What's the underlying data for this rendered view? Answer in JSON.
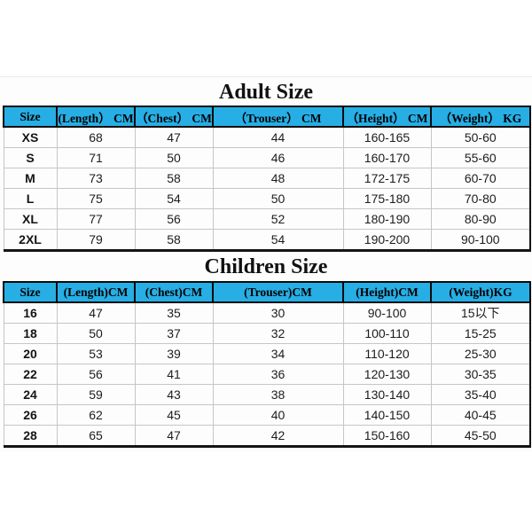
{
  "colors": {
    "header_bg": "#27aee5",
    "grid_line": "#c6c6c6",
    "border_dark": "#141414",
    "title_text": "#111111"
  },
  "adult": {
    "title": "Adult Size",
    "headers": [
      "Size",
      "(Length） CM",
      "（Chest） CM",
      "（Trouser） CM",
      "（Height） CM",
      "（Weight） KG"
    ],
    "rows": [
      [
        "XS",
        "68",
        "47",
        "44",
        "160-165",
        "50-60"
      ],
      [
        "S",
        "71",
        "50",
        "46",
        "160-170",
        "55-60"
      ],
      [
        "M",
        "73",
        "58",
        "48",
        "172-175",
        "60-70"
      ],
      [
        "L",
        "75",
        "54",
        "50",
        "175-180",
        "70-80"
      ],
      [
        "XL",
        "77",
        "56",
        "52",
        "180-190",
        "80-90"
      ],
      [
        "2XL",
        "79",
        "58",
        "54",
        "190-200",
        "90-100"
      ]
    ]
  },
  "children": {
    "title": "Children Size",
    "headers": [
      "Size",
      "(Length)CM",
      "(Chest)CM",
      "(Trouser)CM",
      "(Height)CM",
      "(Weight)KG"
    ],
    "rows": [
      [
        "16",
        "47",
        "35",
        "30",
        "90-100",
        "15以下"
      ],
      [
        "18",
        "50",
        "37",
        "32",
        "100-110",
        "15-25"
      ],
      [
        "20",
        "53",
        "39",
        "34",
        "110-120",
        "25-30"
      ],
      [
        "22",
        "56",
        "41",
        "36",
        "120-130",
        "30-35"
      ],
      [
        "24",
        "59",
        "43",
        "38",
        "130-140",
        "35-40"
      ],
      [
        "26",
        "62",
        "45",
        "40",
        "140-150",
        "40-45"
      ],
      [
        "28",
        "65",
        "47",
        "42",
        "150-160",
        "45-50"
      ]
    ]
  },
  "chart_data": [
    {
      "type": "table",
      "title": "Adult Size",
      "columns": [
        "Size",
        "(Length） CM",
        "（Chest） CM",
        "（Trouser） CM",
        "（Height） CM",
        "（Weight） KG"
      ],
      "rows": [
        [
          "XS",
          68,
          47,
          44,
          "160-165",
          "50-60"
        ],
        [
          "S",
          71,
          50,
          46,
          "160-170",
          "55-60"
        ],
        [
          "M",
          73,
          58,
          48,
          "172-175",
          "60-70"
        ],
        [
          "L",
          75,
          54,
          50,
          "175-180",
          "70-80"
        ],
        [
          "XL",
          77,
          56,
          52,
          "180-190",
          "80-90"
        ],
        [
          "2XL",
          79,
          58,
          54,
          "190-200",
          "90-100"
        ]
      ],
      "layout_hints": {
        "header_fill": "#27aee5",
        "header_text_bold": true,
        "grid": true
      }
    },
    {
      "type": "table",
      "title": "Children Size",
      "columns": [
        "Size",
        "(Length)CM",
        "(Chest)CM",
        "(Trouser)CM",
        "(Height)CM",
        "(Weight)KG"
      ],
      "rows": [
        [
          "16",
          47,
          35,
          30,
          "90-100",
          "15以下"
        ],
        [
          "18",
          50,
          37,
          32,
          "100-110",
          "15-25"
        ],
        [
          "20",
          53,
          39,
          34,
          "110-120",
          "25-30"
        ],
        [
          "22",
          56,
          41,
          36,
          "120-130",
          "30-35"
        ],
        [
          "24",
          59,
          43,
          38,
          "130-140",
          "35-40"
        ],
        [
          "26",
          62,
          45,
          40,
          "140-150",
          "40-45"
        ],
        [
          "28",
          65,
          47,
          42,
          "150-160",
          "45-50"
        ]
      ],
      "layout_hints": {
        "header_fill": "#27aee5",
        "header_text_bold": true,
        "grid": true
      }
    }
  ]
}
